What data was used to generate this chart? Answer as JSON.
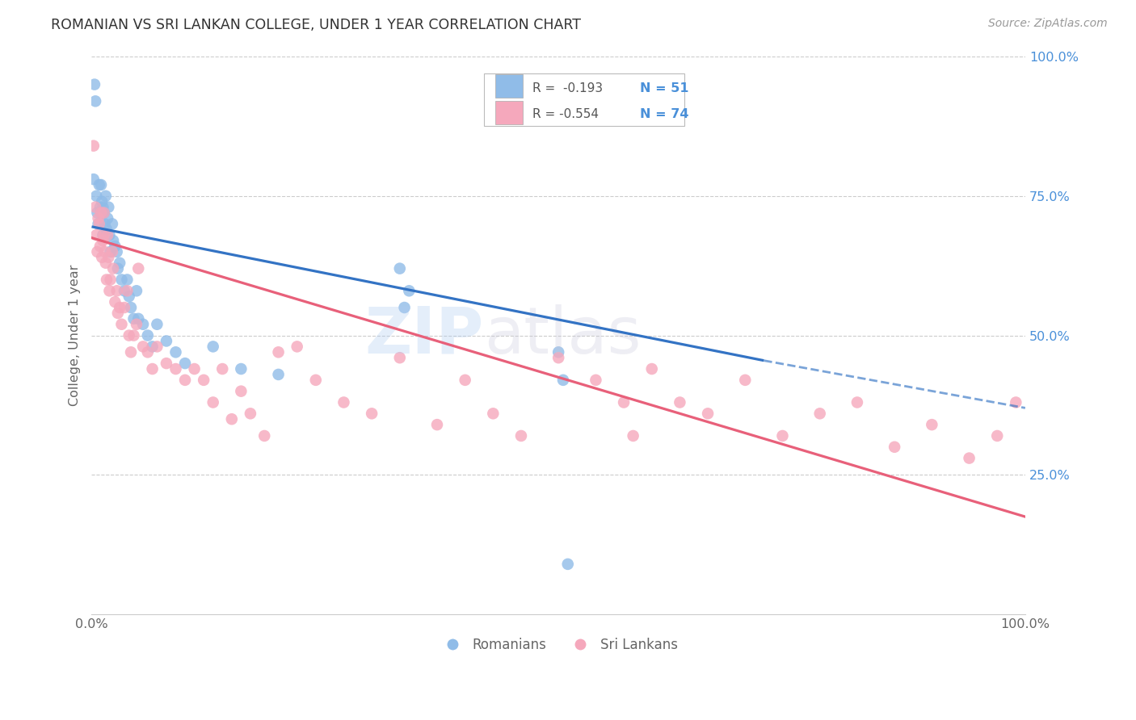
{
  "title": "ROMANIAN VS SRI LANKAN COLLEGE, UNDER 1 YEAR CORRELATION CHART",
  "source": "Source: ZipAtlas.com",
  "ylabel": "College, Under 1 year",
  "legend_blue_r": "R =  -0.193",
  "legend_blue_n": "N = 51",
  "legend_pink_r": "R = -0.554",
  "legend_pink_n": "N = 74",
  "blue_scatter_color": "#90bce8",
  "pink_scatter_color": "#f5a8bc",
  "blue_line_color": "#3373c4",
  "pink_line_color": "#e8607a",
  "right_tick_color": "#4a90d9",
  "title_color": "#333333",
  "source_color": "#999999",
  "label_color": "#666666",
  "grid_color": "#cccccc",
  "blue_line_start_x": 0.0,
  "blue_line_start_y": 0.695,
  "blue_line_solid_end_x": 0.72,
  "blue_line_solid_end_y": 0.455,
  "blue_line_dash_end_x": 1.0,
  "blue_line_dash_end_y": 0.37,
  "pink_line_start_x": 0.0,
  "pink_line_start_y": 0.675,
  "pink_line_end_x": 1.0,
  "pink_line_end_y": 0.175,
  "xlim": [
    0,
    1.0
  ],
  "ylim": [
    0,
    1.0
  ],
  "blue_scatter_x": [
    0.002,
    0.003,
    0.004,
    0.005,
    0.006,
    0.007,
    0.008,
    0.009,
    0.01,
    0.01,
    0.011,
    0.012,
    0.012,
    0.013,
    0.014,
    0.015,
    0.016,
    0.017,
    0.018,
    0.019,
    0.02,
    0.022,
    0.023,
    0.025,
    0.027,
    0.028,
    0.03,
    0.032,
    0.035,
    0.038,
    0.04,
    0.042,
    0.045,
    0.048,
    0.05,
    0.055,
    0.06,
    0.065,
    0.07,
    0.08,
    0.09,
    0.1,
    0.13,
    0.16,
    0.2,
    0.33,
    0.34,
    0.335,
    0.5,
    0.505,
    0.51
  ],
  "blue_scatter_y": [
    0.78,
    0.95,
    0.92,
    0.75,
    0.72,
    0.7,
    0.77,
    0.73,
    0.77,
    0.72,
    0.74,
    0.73,
    0.68,
    0.72,
    0.7,
    0.75,
    0.69,
    0.71,
    0.73,
    0.68,
    0.65,
    0.7,
    0.67,
    0.66,
    0.65,
    0.62,
    0.63,
    0.6,
    0.58,
    0.6,
    0.57,
    0.55,
    0.53,
    0.58,
    0.53,
    0.52,
    0.5,
    0.48,
    0.52,
    0.49,
    0.47,
    0.45,
    0.48,
    0.44,
    0.43,
    0.62,
    0.58,
    0.55,
    0.47,
    0.42,
    0.09
  ],
  "pink_scatter_x": [
    0.002,
    0.004,
    0.005,
    0.006,
    0.007,
    0.008,
    0.009,
    0.01,
    0.011,
    0.012,
    0.013,
    0.013,
    0.014,
    0.015,
    0.016,
    0.017,
    0.018,
    0.019,
    0.02,
    0.022,
    0.023,
    0.025,
    0.027,
    0.028,
    0.03,
    0.032,
    0.035,
    0.038,
    0.04,
    0.042,
    0.045,
    0.048,
    0.05,
    0.055,
    0.06,
    0.065,
    0.07,
    0.08,
    0.09,
    0.1,
    0.11,
    0.12,
    0.13,
    0.14,
    0.15,
    0.16,
    0.17,
    0.185,
    0.2,
    0.22,
    0.24,
    0.27,
    0.3,
    0.33,
    0.37,
    0.4,
    0.43,
    0.46,
    0.5,
    0.54,
    0.57,
    0.58,
    0.6,
    0.63,
    0.66,
    0.7,
    0.74,
    0.78,
    0.82,
    0.86,
    0.9,
    0.94,
    0.97,
    0.99
  ],
  "pink_scatter_y": [
    0.84,
    0.73,
    0.68,
    0.65,
    0.71,
    0.7,
    0.66,
    0.72,
    0.64,
    0.67,
    0.72,
    0.68,
    0.65,
    0.63,
    0.6,
    0.68,
    0.64,
    0.58,
    0.6,
    0.65,
    0.62,
    0.56,
    0.58,
    0.54,
    0.55,
    0.52,
    0.55,
    0.58,
    0.5,
    0.47,
    0.5,
    0.52,
    0.62,
    0.48,
    0.47,
    0.44,
    0.48,
    0.45,
    0.44,
    0.42,
    0.44,
    0.42,
    0.38,
    0.44,
    0.35,
    0.4,
    0.36,
    0.32,
    0.47,
    0.48,
    0.42,
    0.38,
    0.36,
    0.46,
    0.34,
    0.42,
    0.36,
    0.32,
    0.46,
    0.42,
    0.38,
    0.32,
    0.44,
    0.38,
    0.36,
    0.42,
    0.32,
    0.36,
    0.38,
    0.3,
    0.34,
    0.28,
    0.32,
    0.38
  ]
}
